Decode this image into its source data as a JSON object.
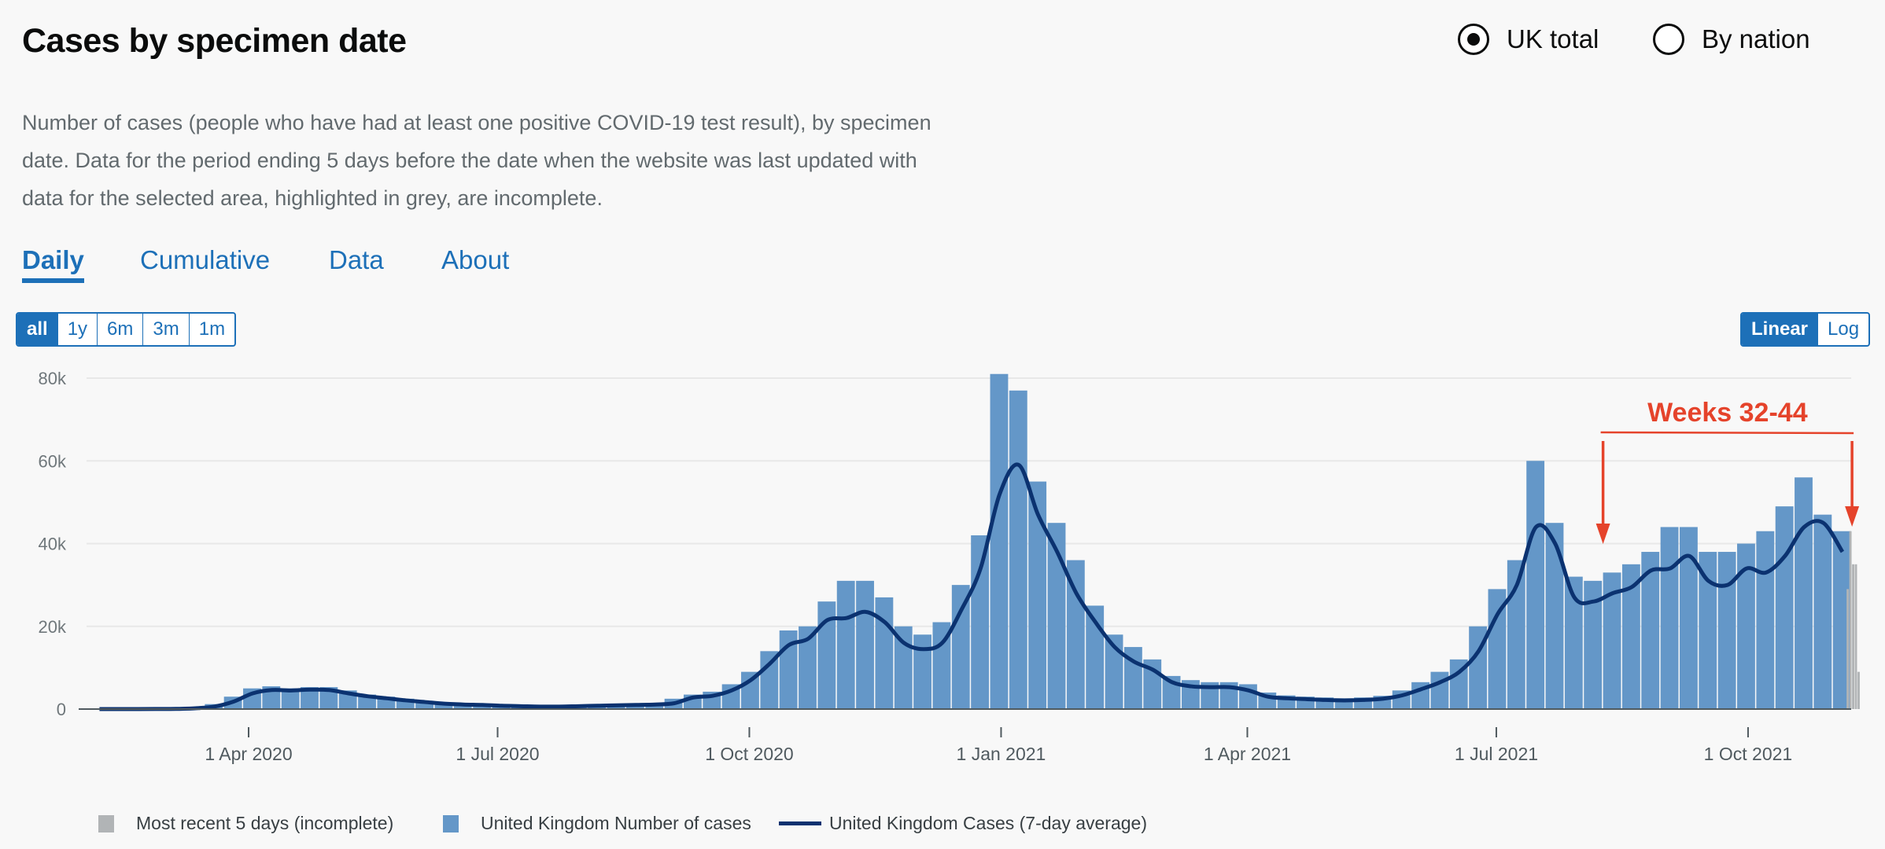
{
  "header": {
    "title": "Cases by specimen date",
    "radio_options": [
      {
        "label": "UK total",
        "selected": true
      },
      {
        "label": "By nation",
        "selected": false
      }
    ],
    "description": "Number of cases (people who have had at least one positive COVID-19 test result), by specimen date. Data for the period ending 5 days before the date when the website was last updated with data for the selected area, highlighted in grey, are incomplete."
  },
  "tabs": [
    {
      "label": "Daily",
      "active": true
    },
    {
      "label": "Cumulative"
    },
    {
      "label": "Data"
    },
    {
      "label": "About"
    }
  ],
  "range_buttons": [
    {
      "label": "all",
      "selected": true
    },
    {
      "label": "1y"
    },
    {
      "label": "6m"
    },
    {
      "label": "3m"
    },
    {
      "label": "1m"
    }
  ],
  "scale_buttons": [
    {
      "label": "Linear",
      "selected": true
    },
    {
      "label": "Log"
    }
  ],
  "colors": {
    "bars": "#6497c8",
    "incomplete": "#b1b4b6",
    "line": "#0b3270",
    "annotation": "#e5432b",
    "link": "#1d70b8"
  },
  "chart_data": {
    "type": "bar",
    "title": "",
    "xlabel": "",
    "ylabel": "",
    "ylim": [
      0,
      80000
    ],
    "yticks": [
      {
        "value": 0,
        "label": "0"
      },
      {
        "value": 20000,
        "label": "20k"
      },
      {
        "value": 40000,
        "label": "40k"
      },
      {
        "value": 60000,
        "label": "60k"
      },
      {
        "value": 80000,
        "label": "80k"
      }
    ],
    "xticks": [
      {
        "date": "2020-04-01",
        "label": "1 Apr 2020"
      },
      {
        "date": "2020-07-01",
        "label": "1 Jul 2020"
      },
      {
        "date": "2020-10-01",
        "label": "1 Oct 2020"
      },
      {
        "date": "2021-01-01",
        "label": "1 Jan 2021"
      },
      {
        "date": "2021-04-01",
        "label": "1 Apr 2021"
      },
      {
        "date": "2021-07-01",
        "label": "1 Jul 2021"
      },
      {
        "date": "2021-10-01",
        "label": "1 Oct 2021"
      }
    ],
    "grid": true,
    "legend_position": "bottom",
    "week_start_dates_from": "2020-02-03",
    "series": [
      {
        "name": "United Kingdom Number of cases",
        "kind": "bar",
        "resolution": "weekly peak",
        "values": [
          0,
          0,
          0,
          50,
          100,
          400,
          1200,
          3000,
          5000,
          5500,
          5000,
          5300,
          5300,
          4500,
          3500,
          3000,
          2500,
          2000,
          1600,
          1300,
          1100,
          1000,
          900,
          800,
          800,
          900,
          1000,
          1200,
          1300,
          1500,
          2500,
          3500,
          4200,
          6000,
          9000,
          14000,
          19000,
          20000,
          26000,
          31000,
          31000,
          27000,
          20000,
          18000,
          21000,
          30000,
          42000,
          81000,
          77000,
          55000,
          45000,
          36000,
          25000,
          18000,
          15000,
          12000,
          8000,
          7000,
          6500,
          6500,
          6000,
          4000,
          3300,
          3000,
          2800,
          2600,
          2800,
          3200,
          4500,
          6500,
          9000,
          12000,
          20000,
          29000,
          36000,
          60000,
          45000,
          32000,
          31000,
          33000,
          35000,
          38000,
          44000,
          44000,
          38000,
          38000,
          40000,
          43000,
          49000,
          56000,
          47000,
          43000
        ]
      },
      {
        "name": "United Kingdom Cases (7-day average)",
        "kind": "line",
        "values": [
          0,
          0,
          0,
          20,
          50,
          200,
          600,
          1800,
          3800,
          4600,
          4500,
          4700,
          4600,
          3800,
          3100,
          2600,
          2100,
          1700,
          1300,
          1100,
          1000,
          800,
          700,
          600,
          600,
          700,
          800,
          900,
          1000,
          1100,
          1400,
          2800,
          3200,
          4500,
          7000,
          11000,
          15500,
          17000,
          21500,
          22000,
          23500,
          21000,
          16000,
          14500,
          16000,
          24000,
          34000,
          52000,
          59000,
          47000,
          38000,
          28000,
          21000,
          15000,
          11500,
          9500,
          6500,
          5500,
          5300,
          5300,
          4500,
          3000,
          2600,
          2400,
          2200,
          2100,
          2200,
          2500,
          3300,
          4800,
          6500,
          9000,
          14000,
          23000,
          30000,
          44000,
          40000,
          27000,
          26000,
          28000,
          29500,
          33500,
          34000,
          37000,
          31000,
          30000,
          34000,
          33000,
          37000,
          44000,
          45000,
          38000
        ]
      },
      {
        "name": "Most recent 5 days (incomplete)",
        "kind": "bar",
        "resolution": "daily",
        "start_date": "2021-11-06",
        "values": [
          29000,
          43000,
          35000,
          35000,
          9000
        ]
      }
    ],
    "annotation": {
      "label": "Weeks 32-44",
      "from_date": "2021-08-09",
      "to_date": "2021-11-08"
    }
  },
  "legend": [
    {
      "label": "Most recent 5 days (incomplete)"
    },
    {
      "label": "United Kingdom Number of cases"
    },
    {
      "label": "United Kingdom Cases (7-day average)"
    }
  ]
}
